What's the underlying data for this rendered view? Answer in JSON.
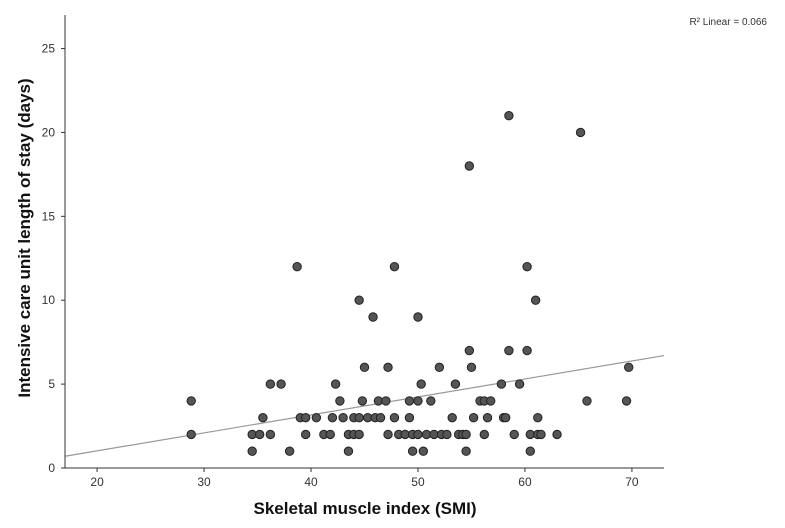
{
  "chart_data": {
    "type": "scatter",
    "xlabel": "Skeletal muscle index (SMI)",
    "ylabel": "Intensive care unit length of stay (days)",
    "annotation": "R² Linear = 0.066",
    "xlim": [
      17,
      73
    ],
    "ylim": [
      0,
      27
    ],
    "x_ticks": [
      20,
      30,
      40,
      50,
      60,
      70
    ],
    "y_ticks": [
      0,
      5,
      10,
      15,
      20,
      25
    ],
    "grid": false,
    "colors": {
      "point_fill": "#555555",
      "point_stroke": "#222222",
      "fit_line": "#999999",
      "axis": "#333333"
    },
    "fit_line": {
      "x": [
        17,
        73
      ],
      "y": [
        0.7,
        6.7
      ]
    },
    "points": [
      {
        "x": 28.8,
        "y": 4
      },
      {
        "x": 28.8,
        "y": 2
      },
      {
        "x": 34.5,
        "y": 2
      },
      {
        "x": 34.5,
        "y": 1
      },
      {
        "x": 35.2,
        "y": 2
      },
      {
        "x": 35.5,
        "y": 3
      },
      {
        "x": 36.2,
        "y": 5
      },
      {
        "x": 36.2,
        "y": 2
      },
      {
        "x": 37.2,
        "y": 5
      },
      {
        "x": 38.0,
        "y": 1
      },
      {
        "x": 38.7,
        "y": 12
      },
      {
        "x": 39.0,
        "y": 3
      },
      {
        "x": 39.5,
        "y": 3
      },
      {
        "x": 39.5,
        "y": 2
      },
      {
        "x": 40.5,
        "y": 3
      },
      {
        "x": 41.2,
        "y": 2
      },
      {
        "x": 41.8,
        "y": 2
      },
      {
        "x": 42.0,
        "y": 3
      },
      {
        "x": 42.3,
        "y": 5
      },
      {
        "x": 42.7,
        "y": 4
      },
      {
        "x": 43.0,
        "y": 3
      },
      {
        "x": 43.5,
        "y": 1
      },
      {
        "x": 43.5,
        "y": 2
      },
      {
        "x": 44.0,
        "y": 2
      },
      {
        "x": 44.0,
        "y": 3
      },
      {
        "x": 44.5,
        "y": 10
      },
      {
        "x": 44.5,
        "y": 3
      },
      {
        "x": 44.5,
        "y": 2
      },
      {
        "x": 44.8,
        "y": 4
      },
      {
        "x": 45.0,
        "y": 6
      },
      {
        "x": 45.3,
        "y": 3
      },
      {
        "x": 45.8,
        "y": 9
      },
      {
        "x": 46.0,
        "y": 3
      },
      {
        "x": 46.3,
        "y": 4
      },
      {
        "x": 46.5,
        "y": 3
      },
      {
        "x": 47.0,
        "y": 4
      },
      {
        "x": 47.2,
        "y": 6
      },
      {
        "x": 47.2,
        "y": 2
      },
      {
        "x": 47.8,
        "y": 12
      },
      {
        "x": 47.8,
        "y": 3
      },
      {
        "x": 48.2,
        "y": 2
      },
      {
        "x": 48.8,
        "y": 2
      },
      {
        "x": 49.2,
        "y": 4
      },
      {
        "x": 49.2,
        "y": 3
      },
      {
        "x": 49.5,
        "y": 2
      },
      {
        "x": 49.5,
        "y": 1
      },
      {
        "x": 50.0,
        "y": 9
      },
      {
        "x": 50.0,
        "y": 4
      },
      {
        "x": 50.0,
        "y": 2
      },
      {
        "x": 50.3,
        "y": 5
      },
      {
        "x": 50.5,
        "y": 1
      },
      {
        "x": 50.8,
        "y": 2
      },
      {
        "x": 51.2,
        "y": 4
      },
      {
        "x": 51.5,
        "y": 2
      },
      {
        "x": 52.0,
        "y": 6
      },
      {
        "x": 52.2,
        "y": 2
      },
      {
        "x": 52.7,
        "y": 2
      },
      {
        "x": 53.2,
        "y": 3
      },
      {
        "x": 53.5,
        "y": 5
      },
      {
        "x": 53.8,
        "y": 2
      },
      {
        "x": 54.2,
        "y": 2
      },
      {
        "x": 54.5,
        "y": 1
      },
      {
        "x": 54.5,
        "y": 2
      },
      {
        "x": 54.8,
        "y": 18
      },
      {
        "x": 54.8,
        "y": 7
      },
      {
        "x": 55.0,
        "y": 6
      },
      {
        "x": 55.2,
        "y": 3
      },
      {
        "x": 55.8,
        "y": 4
      },
      {
        "x": 56.2,
        "y": 4
      },
      {
        "x": 56.2,
        "y": 2
      },
      {
        "x": 56.5,
        "y": 3
      },
      {
        "x": 56.8,
        "y": 4
      },
      {
        "x": 57.8,
        "y": 5
      },
      {
        "x": 58.0,
        "y": 3
      },
      {
        "x": 58.2,
        "y": 3
      },
      {
        "x": 58.5,
        "y": 7
      },
      {
        "x": 58.5,
        "y": 21
      },
      {
        "x": 59.0,
        "y": 2
      },
      {
        "x": 59.5,
        "y": 5
      },
      {
        "x": 60.2,
        "y": 12
      },
      {
        "x": 60.2,
        "y": 7
      },
      {
        "x": 60.5,
        "y": 2
      },
      {
        "x": 60.5,
        "y": 1
      },
      {
        "x": 61.0,
        "y": 10
      },
      {
        "x": 61.2,
        "y": 3
      },
      {
        "x": 61.2,
        "y": 2
      },
      {
        "x": 61.5,
        "y": 2
      },
      {
        "x": 63.0,
        "y": 2
      },
      {
        "x": 65.2,
        "y": 20
      },
      {
        "x": 65.8,
        "y": 4
      },
      {
        "x": 69.5,
        "y": 4
      },
      {
        "x": 69.7,
        "y": 6
      }
    ]
  }
}
